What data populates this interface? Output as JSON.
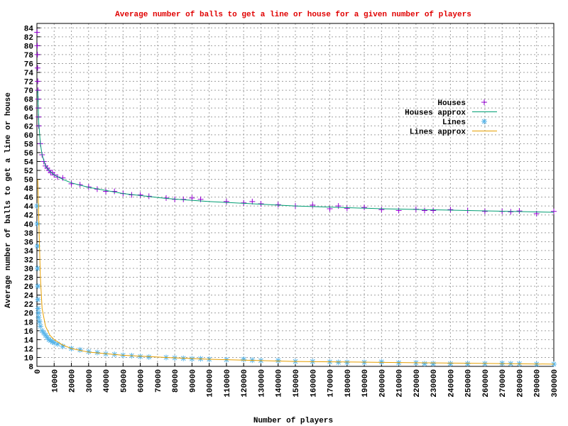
{
  "chart_data": {
    "type": "scatter",
    "title": "Average number of balls to get a line or house for a given number of players",
    "x_label": "Number of players",
    "y_label": "Average number of balls to get a line or house",
    "xlim": [
      0,
      300000
    ],
    "ylim": [
      8,
      85
    ],
    "xticks": [
      0,
      10000,
      20000,
      30000,
      40000,
      50000,
      60000,
      70000,
      80000,
      90000,
      100000,
      110000,
      120000,
      130000,
      140000,
      150000,
      160000,
      170000,
      180000,
      190000,
      200000,
      210000,
      220000,
      230000,
      240000,
      250000,
      260000,
      270000,
      280000,
      290000,
      300000
    ],
    "yticks": [
      8,
      10,
      12,
      14,
      16,
      18,
      20,
      22,
      24,
      26,
      28,
      30,
      32,
      34,
      36,
      38,
      40,
      42,
      44,
      46,
      48,
      50,
      52,
      54,
      56,
      58,
      60,
      62,
      64,
      66,
      68,
      70,
      72,
      74,
      76,
      78,
      80,
      82,
      84
    ],
    "grid": true,
    "legend_position": "upper-right",
    "series": [
      {
        "name": "Houses",
        "color": "#9400d3",
        "marker": "plus",
        "x": [
          100,
          200,
          300,
          400,
          500,
          600,
          700,
          800,
          900,
          1000,
          2000,
          3000,
          4000,
          5000,
          6000,
          7000,
          8000,
          9000,
          10000,
          12000,
          15000,
          20000,
          25000,
          30000,
          35000,
          40000,
          45000,
          50000,
          55000,
          60000,
          65000,
          75000,
          80000,
          85000,
          90000,
          95000,
          110000,
          120000,
          125000,
          130000,
          140000,
          150000,
          160000,
          170000,
          175000,
          180000,
          190000,
          200000,
          210000,
          220000,
          225000,
          230000,
          240000,
          250000,
          260000,
          270000,
          275000,
          280000,
          290000,
          300000
        ],
        "values": [
          83,
          80,
          78,
          75,
          72,
          70,
          68,
          66,
          64,
          62,
          58,
          55.5,
          54,
          53,
          52.5,
          52,
          51.5,
          51.5,
          51,
          50.5,
          50.3,
          49,
          48.8,
          48.3,
          47.8,
          47.3,
          47.3,
          46.8,
          46.5,
          46.5,
          46.2,
          45.8,
          45.5,
          45.5,
          45.8,
          45.5,
          45,
          44.7,
          45,
          44.5,
          44.3,
          44,
          44.2,
          43.4,
          44,
          43.5,
          43.7,
          43.2,
          43,
          43.3,
          43,
          43,
          43.2,
          43,
          42.8,
          42.8,
          42.7,
          42.9,
          42.3,
          42.8
        ]
      },
      {
        "name": "Houses approx",
        "color": "#009e73",
        "line": true,
        "x": [
          500,
          1000,
          2000,
          3000,
          5000,
          7500,
          10000,
          15000,
          20000,
          30000,
          50000,
          75000,
          100000,
          150000,
          200000,
          250000,
          300000
        ],
        "values": [
          70,
          63,
          58,
          55.5,
          53,
          51.8,
          51,
          50,
          49.2,
          48.2,
          46.8,
          45.7,
          45,
          44,
          43.4,
          43,
          42.6
        ]
      },
      {
        "name": "Lines",
        "color": "#56b4e9",
        "marker": "star",
        "x": [
          100,
          200,
          300,
          400,
          500,
          600,
          700,
          800,
          1000,
          1500,
          2000,
          3000,
          4000,
          5000,
          6000,
          7000,
          8000,
          9000,
          10000,
          12000,
          15000,
          20000,
          25000,
          30000,
          35000,
          40000,
          45000,
          50000,
          55000,
          60000,
          65000,
          75000,
          80000,
          85000,
          90000,
          95000,
          100000,
          110000,
          120000,
          125000,
          130000,
          140000,
          150000,
          160000,
          170000,
          175000,
          180000,
          190000,
          200000,
          210000,
          220000,
          225000,
          230000,
          240000,
          250000,
          260000,
          270000,
          275000,
          280000,
          290000,
          300000
        ],
        "values": [
          44,
          40,
          35,
          30,
          26,
          23,
          21,
          20,
          19,
          18,
          17,
          16,
          15.5,
          15,
          14.5,
          14,
          13.8,
          13.5,
          13.3,
          13,
          12.5,
          12,
          11.7,
          11.3,
          11.1,
          10.8,
          10.7,
          10.5,
          10.4,
          10.2,
          10.1,
          10,
          9.9,
          9.8,
          9.7,
          9.7,
          9.6,
          9.5,
          9.6,
          9.4,
          9.3,
          9.3,
          9.1,
          9.1,
          9,
          8.9,
          8.9,
          8.9,
          9,
          8.8,
          8.8,
          8.6,
          8.6,
          8.6,
          8.6,
          8.6,
          8.7,
          8.6,
          8.6,
          8.5,
          8.5
        ]
      },
      {
        "name": "Lines approx",
        "color": "#e69f00",
        "line": true,
        "x": [
          500,
          1000,
          2000,
          3000,
          5000,
          7500,
          10000,
          15000,
          20000,
          30000,
          50000,
          75000,
          100000,
          150000,
          200000,
          250000,
          300000
        ],
        "values": [
          50,
          42,
          28,
          21,
          17,
          15,
          14,
          12.8,
          12,
          11.2,
          10.5,
          10,
          9.6,
          9.1,
          8.9,
          8.7,
          8.5
        ]
      }
    ]
  }
}
